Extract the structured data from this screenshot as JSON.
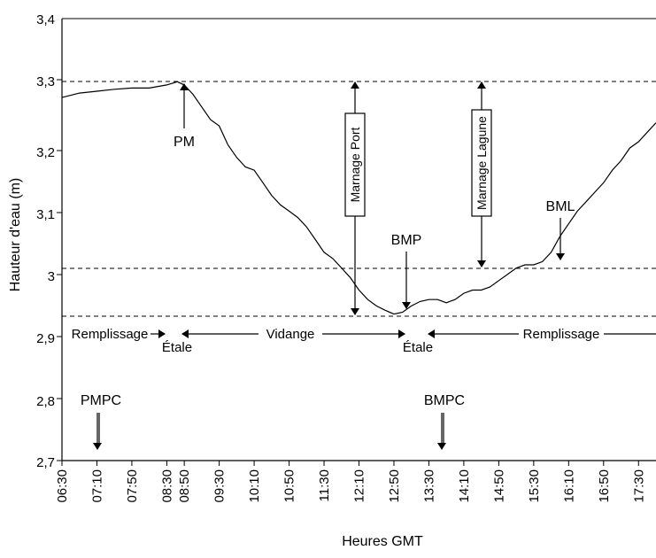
{
  "chart_data": {
    "type": "line",
    "xlabel": "Heures GMT",
    "ylabel": "Hauteur d'eau (m)",
    "xlim": [
      "06:30",
      "17:50"
    ],
    "ylim": [
      2.7,
      3.4
    ],
    "grid": false,
    "x_ticks": [
      "06:30",
      "07:10",
      "07:50",
      "08:30",
      "08:50",
      "09:30",
      "10:10",
      "10:50",
      "11:30",
      "12:10",
      "12:50",
      "13:30",
      "14:10",
      "14:50",
      "15:30",
      "16:10",
      "16:50",
      "17:30"
    ],
    "y_ticks": [
      "2,7",
      "2,8",
      "2,9",
      "3",
      "3,1",
      "3,2",
      "3,3",
      "3,4"
    ],
    "reference_lines": [
      3.3,
      3.0,
      2.93
    ],
    "series": [
      {
        "x": [
          "06:30",
          "06:50",
          "07:10",
          "07:30",
          "07:50",
          "08:10",
          "08:30",
          "08:42",
          "08:50",
          "09:00",
          "09:10",
          "09:20",
          "09:30",
          "09:40",
          "09:50",
          "10:00",
          "10:10",
          "10:20",
          "10:30",
          "10:40",
          "10:50",
          "11:00",
          "11:10",
          "11:20",
          "11:30",
          "11:40",
          "11:50",
          "12:00",
          "12:10",
          "12:20",
          "12:30",
          "12:40",
          "12:50",
          "13:00",
          "13:10",
          "13:20",
          "13:30",
          "13:40",
          "13:50",
          "14:00",
          "14:10",
          "14:20",
          "14:30",
          "14:40",
          "14:50",
          "15:00",
          "15:10",
          "15:20",
          "15:30",
          "15:40",
          "15:50",
          "16:00",
          "16:10",
          "16:20",
          "16:30",
          "16:40",
          "16:50",
          "17:00",
          "17:10",
          "17:20",
          "17:30",
          "17:40",
          "17:50"
        ],
        "values": [
          3.275,
          3.282,
          3.285,
          3.288,
          3.29,
          3.29,
          3.295,
          3.3,
          3.295,
          3.28,
          3.26,
          3.24,
          3.23,
          3.2,
          3.18,
          3.165,
          3.16,
          3.14,
          3.12,
          3.105,
          3.095,
          3.085,
          3.07,
          3.05,
          3.03,
          3.02,
          3.005,
          2.99,
          2.97,
          2.955,
          2.945,
          2.938,
          2.932,
          2.935,
          2.945,
          2.952,
          2.955,
          2.955,
          2.95,
          2.955,
          2.965,
          2.97,
          2.97,
          2.975,
          2.985,
          2.995,
          3.005,
          3.01,
          3.01,
          3.015,
          3.03,
          3.055,
          3.075,
          3.095,
          3.11,
          3.125,
          3.14,
          3.16,
          3.175,
          3.195,
          3.205,
          3.22,
          3.235
        ]
      }
    ],
    "annotations": {
      "pm": "PM",
      "bmp": "BMP",
      "bml": "BML",
      "pmpc": "PMPC",
      "bmpc": "BMPC",
      "marnage_port": "Marnage Port",
      "marnage_lagune": "Marnage Lagune",
      "remplissage": "Remplissage",
      "vidange": "Vidange",
      "etale": "Étale"
    }
  }
}
